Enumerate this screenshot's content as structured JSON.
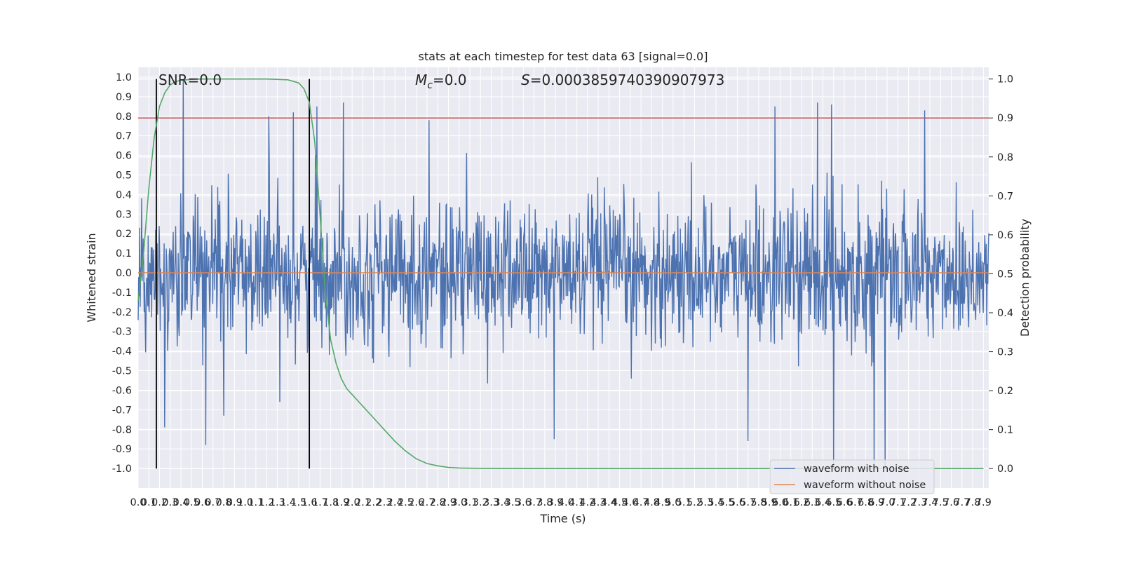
{
  "chart_data": {
    "type": "line",
    "title": "stats at each timestep for test data 63 [signal=0.0]",
    "xlabel": "Time (s)",
    "ylabel": "Whitened strain",
    "y2label": "Detection probability",
    "xlim": [
      0.0,
      7.95
    ],
    "ylim": [
      -1.1,
      1.05
    ],
    "y2lim": [
      -0.05,
      1.03
    ],
    "x_ticks": [
      "0.0",
      "0.1",
      "0.2",
      "0.3",
      "0.4",
      "0.5",
      "0.6",
      "0.7",
      "0.8",
      "0.9",
      "1.0",
      "1.1",
      "1.2",
      "1.3",
      "1.4",
      "1.5",
      "1.6",
      "1.7",
      "1.8",
      "1.9",
      "2.0",
      "2.1",
      "2.2",
      "2.3",
      "2.4",
      "2.5",
      "2.6",
      "2.7",
      "2.8",
      "2.9",
      "3.0",
      "3.1",
      "3.2",
      "3.3",
      "3.4",
      "3.5",
      "3.6",
      "3.7",
      "3.8",
      "3.9",
      "4.0",
      "4.1",
      "4.2",
      "4.3",
      "4.4",
      "4.5",
      "4.6",
      "4.7",
      "4.8",
      "4.9",
      "5.0",
      "5.1",
      "5.2",
      "5.3",
      "5.4",
      "5.5",
      "5.6",
      "5.7",
      "5.8",
      "5.9",
      "6.0",
      "6.1",
      "6.2",
      "6.3",
      "6.4",
      "6.5",
      "6.6",
      "6.7",
      "6.8",
      "6.9",
      "7.0",
      "7.1",
      "7.2",
      "7.3",
      "7.4",
      "7.5",
      "7.6",
      "7.7",
      "7.8",
      "7.9"
    ],
    "y_ticks": [
      "1.0",
      "0.9",
      "0.8",
      "0.7",
      "0.6",
      "0.5",
      "0.4",
      "0.3",
      "0.2",
      "0.1",
      "0.0",
      "-0.1",
      "-0.2",
      "-0.3",
      "-0.4",
      "-0.5",
      "-0.6",
      "-0.7",
      "-0.8",
      "-0.9",
      "-1.0"
    ],
    "y2_ticks": [
      "1.0",
      "0.9",
      "0.8",
      "0.7",
      "0.6",
      "0.5",
      "0.4",
      "0.3",
      "0.2",
      "0.1",
      "0.0"
    ],
    "annotations": {
      "snr": "SNR=0.0",
      "mc": "=0.0",
      "mc_symbol": "M",
      "mc_sub": "c",
      "s": "=0.0003859740390907973",
      "s_symbol": "S"
    },
    "threshold_y2": 0.9,
    "window_lines_x": [
      0.17,
      1.6
    ],
    "legend": [
      "waveform with noise",
      "waveform without noise"
    ],
    "colors": {
      "noise": "#4c72b0",
      "clean": "#dd8452",
      "probability": "#55a868",
      "threshold": "#c44e52",
      "window": "#000000",
      "background": "#eaeaf2",
      "grid": "#ffffff"
    },
    "series": [
      {
        "name": "Detection probability",
        "axis": "y2",
        "x": [
          0.0,
          0.05,
          0.1,
          0.15,
          0.2,
          0.25,
          0.3,
          0.35,
          0.4,
          0.5,
          0.6,
          0.8,
          1.0,
          1.2,
          1.4,
          1.5,
          1.55,
          1.6,
          1.65,
          1.7,
          1.75,
          1.8,
          1.85,
          1.9,
          1.95,
          2.0,
          2.05,
          2.1,
          2.2,
          2.3,
          2.4,
          2.5,
          2.6,
          2.7,
          2.8,
          2.9,
          3.0,
          3.2,
          3.5,
          4.0,
          7.9
        ],
        "y": [
          0.43,
          0.55,
          0.72,
          0.85,
          0.93,
          0.965,
          0.985,
          0.993,
          0.997,
          0.999,
          1.0,
          1.0,
          1.0,
          1.0,
          0.998,
          0.99,
          0.975,
          0.94,
          0.84,
          0.65,
          0.45,
          0.33,
          0.27,
          0.23,
          0.205,
          0.19,
          0.175,
          0.16,
          0.13,
          0.1,
          0.07,
          0.045,
          0.025,
          0.013,
          0.007,
          0.003,
          0.0015,
          0.0005,
          0.0002,
          0.0,
          0.0
        ]
      },
      {
        "name": "waveform without noise",
        "axis": "y",
        "x": [
          0.0,
          7.95
        ],
        "y": [
          0.0,
          0.0
        ]
      },
      {
        "name": "waveform with noise",
        "axis": "y",
        "note": "dense noise trace ~0.4 amplitude, peaks estimated",
        "peaks_x": [
          0.25,
          0.42,
          1.22,
          1.45,
          1.67,
          1.92,
          2.72,
          5.95,
          6.35,
          6.48,
          7.35
        ],
        "peaks_y": [
          0.95,
          0.98,
          0.8,
          0.82,
          0.85,
          0.87,
          0.78,
          0.85,
          0.87,
          0.86,
          0.83
        ],
        "troughs_x": [
          0.25,
          0.63,
          0.8,
          3.89,
          5.7,
          6.5,
          6.88,
          6.98
        ],
        "troughs_y": [
          -0.79,
          -0.88,
          -0.73,
          -0.85,
          -0.86,
          -1.0,
          -1.0,
          -1.0
        ]
      }
    ]
  }
}
